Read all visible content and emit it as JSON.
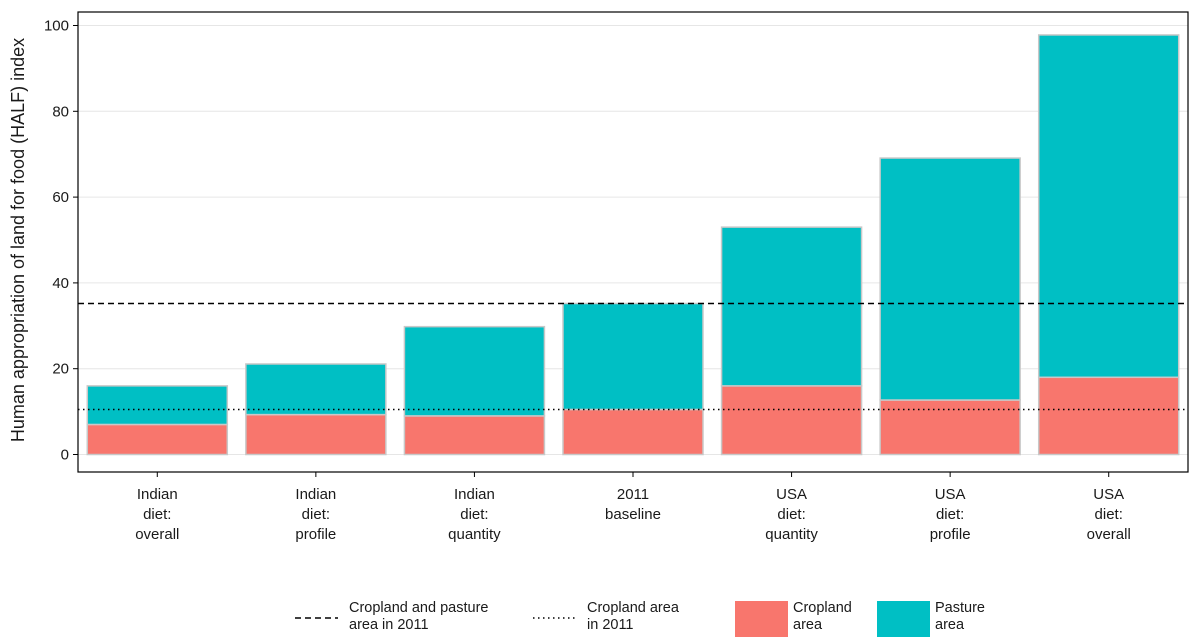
{
  "chart_data": {
    "type": "bar",
    "stacked": true,
    "ylabel": "Human appropriation of land for food (HALF) index",
    "ylim": [
      0,
      100
    ],
    "yticks": [
      0,
      20,
      40,
      60,
      80,
      100
    ],
    "grid": true,
    "categories": [
      [
        "Indian",
        "diet:",
        "overall"
      ],
      [
        "Indian",
        "diet:",
        "profile"
      ],
      [
        "Indian",
        "diet:",
        "quantity"
      ],
      [
        "2011",
        "baseline"
      ],
      [
        "USA",
        "diet:",
        "quantity"
      ],
      [
        "USA",
        "diet:",
        "profile"
      ],
      [
        "USA",
        "diet:",
        "overall"
      ]
    ],
    "series": [
      {
        "name": "Cropland area",
        "color": "#F8766D",
        "values": [
          7,
          9.3,
          9,
          10.5,
          16,
          12.7,
          18
        ]
      },
      {
        "name": "Pasture area",
        "color": "#00BFC4",
        "values": [
          9,
          11.8,
          20.8,
          24.7,
          37,
          56.4,
          79.8
        ]
      }
    ],
    "reference_lines": [
      {
        "name": [
          "Cropland and pasture",
          "area in 2011"
        ],
        "value": 35.2,
        "style": "dashed"
      },
      {
        "name": [
          "Cropland area",
          "in 2011"
        ],
        "value": 10.5,
        "style": "dotted"
      }
    ],
    "legend_position": "bottom"
  }
}
